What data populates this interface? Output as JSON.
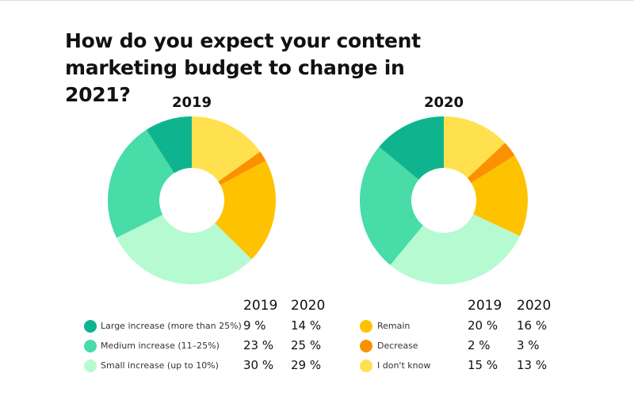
{
  "title": "How do you expect your content marketing budget to change in 2021?",
  "chart_data": {
    "type": "pie",
    "donut": true,
    "title": "How do you expect your content marketing budget to change in 2021?",
    "years": [
      "2019",
      "2020"
    ],
    "categories": [
      "I don't know",
      "Decrease",
      "Remain",
      "Small increase (up to 10%)",
      "Medium increase (11–25%)",
      "Large increase (more than 25%)"
    ],
    "colors": [
      "#ffe14f",
      "#fb9100",
      "#fdc300",
      "#b6fad2",
      "#47dca8",
      "#0fb48f"
    ],
    "series": [
      {
        "name": "2019",
        "values": [
          15,
          2,
          20,
          30,
          23,
          9
        ]
      },
      {
        "name": "2020",
        "values": [
          13,
          3,
          16,
          29,
          25,
          14
        ]
      }
    ],
    "legend": "bottom",
    "value_labels": {
      "2019": [
        "15 %",
        "2 %",
        "20 %",
        "30 %",
        "23 %",
        "9 %"
      ],
      "2020": [
        "13 %",
        "3 %",
        "16 %",
        "29 %",
        "25 %",
        "14 %"
      ]
    }
  }
}
